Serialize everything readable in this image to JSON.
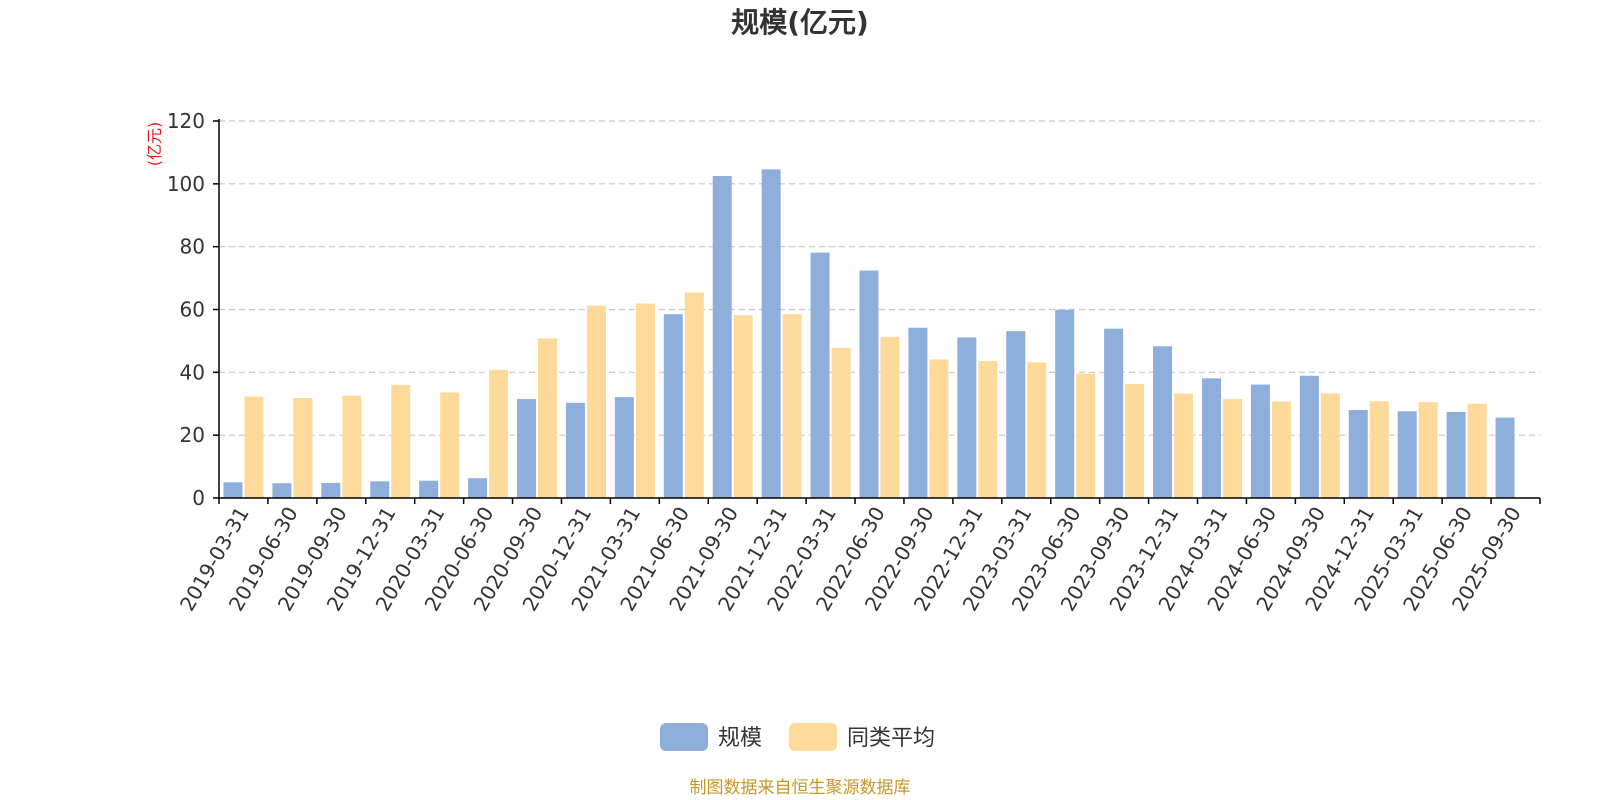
{
  "chart_data": {
    "type": "bar",
    "title": "规模(亿元)",
    "ylabel": "(亿元)",
    "ylim": [
      0,
      120
    ],
    "yticks": [
      0,
      20,
      40,
      60,
      80,
      100,
      120
    ],
    "grid": true,
    "legend_position": "bottom-center",
    "categories": [
      "2019-03-31",
      "2019-06-30",
      "2019-09-30",
      "2019-12-31",
      "2020-03-31",
      "2020-06-30",
      "2020-09-30",
      "2020-12-31",
      "2021-03-31",
      "2021-06-30",
      "2021-09-30",
      "2021-12-31",
      "2022-03-31",
      "2022-06-30",
      "2022-09-30",
      "2022-12-31",
      "2023-03-31",
      "2023-06-30",
      "2023-09-30",
      "2023-12-31",
      "2024-03-31",
      "2024-06-30",
      "2024-09-30",
      "2024-12-31",
      "2025-03-31",
      "2025-06-30",
      "2025-09-30"
    ],
    "series": [
      {
        "name": "规模",
        "color": "#8eaedb",
        "values": [
          5.0,
          4.7,
          4.8,
          5.3,
          5.5,
          6.3,
          31.5,
          30.3,
          32.1,
          58.5,
          102.5,
          104.6,
          78.1,
          72.4,
          54.2,
          51.1,
          53.1,
          59.9,
          53.9,
          48.3,
          38.1,
          36.1,
          38.9,
          28.0,
          27.6,
          27.4,
          25.6
        ]
      },
      {
        "name": "同类平均",
        "color": "#fdd99a",
        "values": [
          32.3,
          31.8,
          32.6,
          36.0,
          33.6,
          40.8,
          50.8,
          61.2,
          61.9,
          65.4,
          58.2,
          58.5,
          47.8,
          51.3,
          44.1,
          43.6,
          43.2,
          39.6,
          36.3,
          33.2,
          31.5,
          30.7,
          33.3,
          30.8,
          30.5,
          30.0,
          null
        ]
      }
    ]
  },
  "source_note": "制图数据来自恒生聚源数据库",
  "colors": {
    "axis": "#000000",
    "grid": "#c8c8c8",
    "unit_label": "#e8181b",
    "source_note": "#c8962a"
  }
}
